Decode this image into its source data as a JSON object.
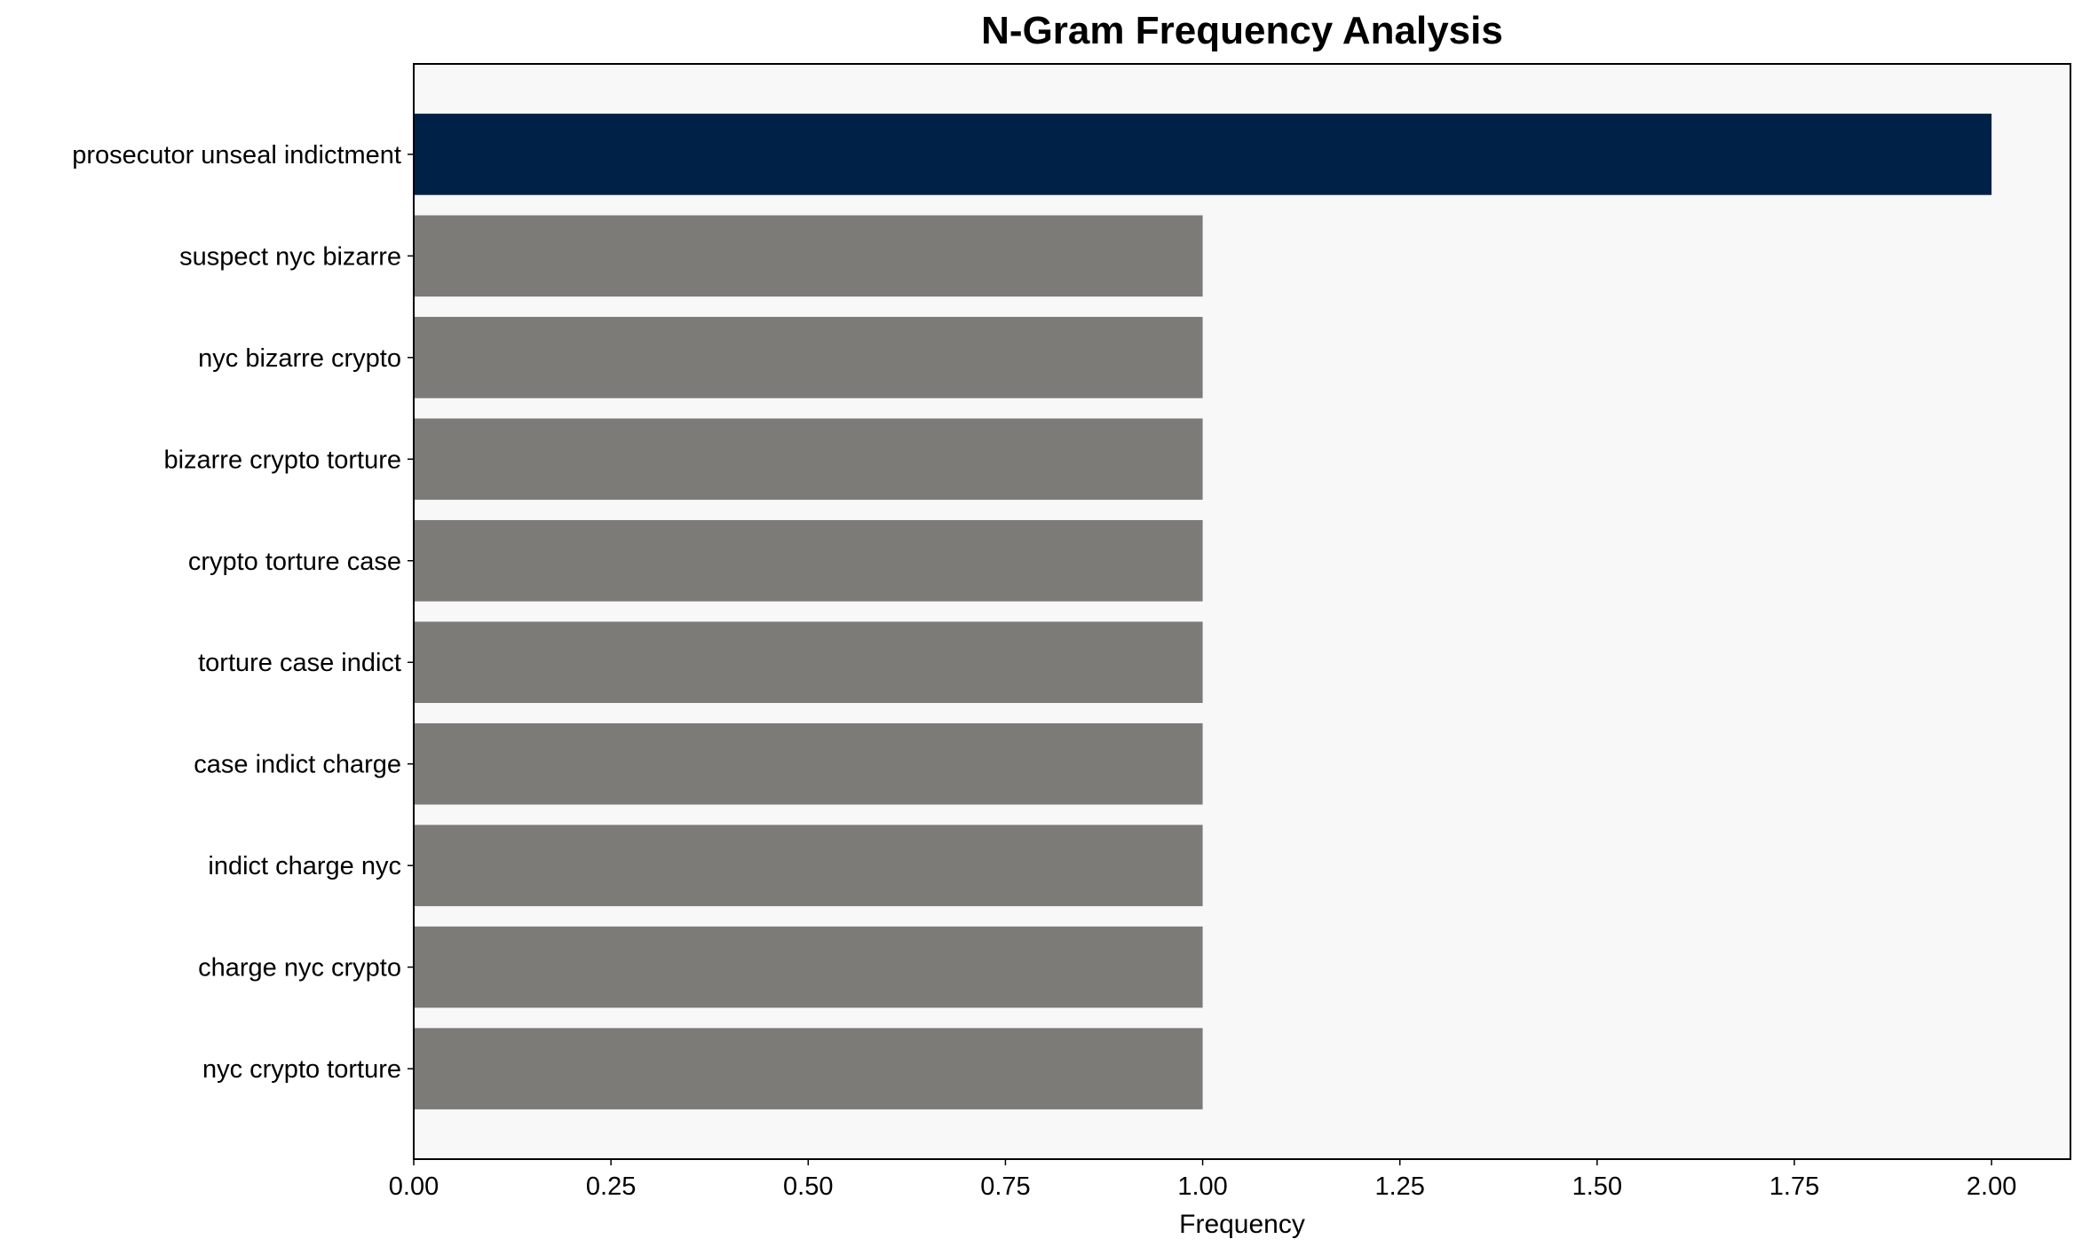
{
  "chart_data": {
    "type": "bar",
    "orientation": "horizontal",
    "title": "N-Gram Frequency Analysis",
    "xlabel": "Frequency",
    "ylabel": "",
    "categories": [
      "prosecutor unseal indictment",
      "suspect nyc bizarre",
      "nyc bizarre crypto",
      "bizarre crypto torture",
      "crypto torture case",
      "torture case indict",
      "case indict charge",
      "indict charge nyc",
      "charge nyc crypto",
      "nyc crypto torture"
    ],
    "values": [
      2,
      1,
      1,
      1,
      1,
      1,
      1,
      1,
      1,
      1
    ],
    "xlim": [
      0,
      2.1
    ],
    "xticks": [
      "0.00",
      "0.25",
      "0.50",
      "0.75",
      "1.00",
      "1.25",
      "1.50",
      "1.75",
      "2.00"
    ],
    "grid": false,
    "colors": {
      "highlight": "#002147",
      "default": "#7c7b78",
      "background": "#f8f8f8"
    }
  }
}
